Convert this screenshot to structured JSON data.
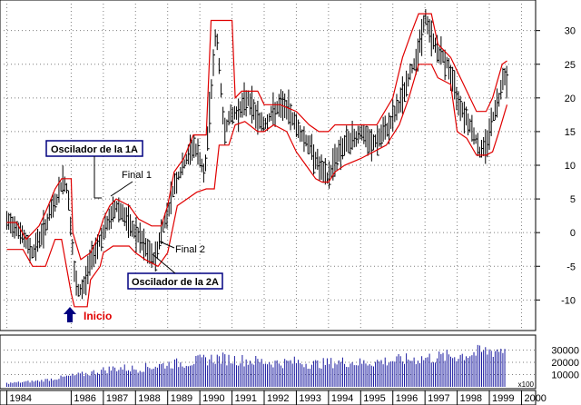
{
  "colors": {
    "price": "#000000",
    "channel": "#e00000",
    "volume": "#1a1aa0",
    "arrow": "#000080",
    "inicio": "#e00000",
    "grid": "#7f7f7f"
  },
  "annotations": {
    "osc1": "Oscilador de la 1A",
    "osc2": "Oscilador de la 2A",
    "final1": "Final 1",
    "final2": "Final 2",
    "inicio": "Inicio",
    "arrow_icon": "up-arrow-icon",
    "vol_unit": "x100"
  },
  "chart_data": [
    {
      "type": "candlestick",
      "title": "",
      "xlabel": "",
      "ylabel": "",
      "x_ticks": [
        "1984",
        "1986",
        "1987",
        "1988",
        "1989",
        "1990",
        "1991",
        "1992",
        "1993",
        "1994",
        "1995",
        "1996",
        "1997",
        "1998",
        "1999",
        "2000"
      ],
      "y_ticks": [
        -10,
        -5,
        0,
        5,
        10,
        15,
        20,
        25,
        30
      ],
      "ylim": [
        -14,
        34
      ],
      "grid": true,
      "price": [
        [
          1984.0,
          1.5
        ],
        [
          1984.3,
          1
        ],
        [
          1984.6,
          -1.5
        ],
        [
          1984.8,
          -3
        ],
        [
          1985.0,
          -1
        ],
        [
          1985.2,
          1
        ],
        [
          1985.4,
          3.5
        ],
        [
          1985.6,
          5.5
        ],
        [
          1985.75,
          8
        ],
        [
          1985.9,
          6
        ],
        [
          1986.0,
          0
        ],
        [
          1986.1,
          -6
        ],
        [
          1986.2,
          -9
        ],
        [
          1986.4,
          -8
        ],
        [
          1986.6,
          -4
        ],
        [
          1986.8,
          -2
        ],
        [
          1987.0,
          0
        ],
        [
          1987.2,
          2
        ],
        [
          1987.4,
          4
        ],
        [
          1987.6,
          3
        ],
        [
          1987.8,
          1
        ],
        [
          1988.0,
          0
        ],
        [
          1988.2,
          -1.5
        ],
        [
          1988.4,
          -3
        ],
        [
          1988.6,
          -4
        ],
        [
          1988.8,
          0
        ],
        [
          1989.0,
          3
        ],
        [
          1989.2,
          7
        ],
        [
          1989.5,
          10
        ],
        [
          1989.8,
          13
        ],
        [
          1990.0,
          11
        ],
        [
          1990.15,
          8
        ],
        [
          1990.3,
          18
        ],
        [
          1990.5,
          30
        ],
        [
          1990.6,
          25
        ],
        [
          1990.75,
          15
        ],
        [
          1990.9,
          17
        ],
        [
          1991.2,
          18
        ],
        [
          1991.5,
          20
        ],
        [
          1991.8,
          17
        ],
        [
          1992.0,
          16
        ],
        [
          1992.3,
          18
        ],
        [
          1992.6,
          19
        ],
        [
          1992.9,
          17
        ],
        [
          1993.1,
          15
        ],
        [
          1993.4,
          13
        ],
        [
          1993.6,
          11
        ],
        [
          1993.8,
          9
        ],
        [
          1994.0,
          8
        ],
        [
          1994.2,
          11
        ],
        [
          1994.5,
          13
        ],
        [
          1994.8,
          14
        ],
        [
          1995.0,
          15
        ],
        [
          1995.3,
          13
        ],
        [
          1995.6,
          14
        ],
        [
          1995.9,
          16
        ],
        [
          1996.2,
          19
        ],
        [
          1996.5,
          23
        ],
        [
          1996.8,
          27
        ],
        [
          1997.0,
          32
        ],
        [
          1997.2,
          29
        ],
        [
          1997.4,
          27
        ],
        [
          1997.7,
          25
        ],
        [
          1998.0,
          20
        ],
        [
          1998.3,
          17
        ],
        [
          1998.5,
          15
        ],
        [
          1998.7,
          12
        ],
        [
          1998.9,
          13
        ],
        [
          1999.1,
          17
        ],
        [
          1999.3,
          20
        ],
        [
          1999.45,
          24
        ],
        [
          1999.55,
          22
        ]
      ],
      "upper_channel": [
        [
          1984.0,
          1.5
        ],
        [
          1984.3,
          1.5
        ],
        [
          1984.6,
          -1
        ],
        [
          1985.0,
          1
        ],
        [
          1985.2,
          3
        ],
        [
          1985.5,
          6.5
        ],
        [
          1985.7,
          8
        ],
        [
          1986.0,
          8
        ],
        [
          1986.05,
          0
        ],
        [
          1986.3,
          -4
        ],
        [
          1986.6,
          -3
        ],
        [
          1986.8,
          -1
        ],
        [
          1987.0,
          2
        ],
        [
          1987.2,
          4
        ],
        [
          1987.4,
          5
        ],
        [
          1987.8,
          4
        ],
        [
          1988.1,
          2
        ],
        [
          1988.5,
          1
        ],
        [
          1988.8,
          1
        ],
        [
          1989.0,
          4
        ],
        [
          1989.2,
          9
        ],
        [
          1989.5,
          11
        ],
        [
          1989.8,
          14.5
        ],
        [
          1990.0,
          14.5
        ],
        [
          1990.2,
          14.5
        ],
        [
          1990.35,
          31.5
        ],
        [
          1991.0,
          31.5
        ],
        [
          1991.1,
          20
        ],
        [
          1991.3,
          21
        ],
        [
          1991.8,
          21
        ],
        [
          1992.0,
          19
        ],
        [
          1992.5,
          19
        ],
        [
          1993.0,
          18
        ],
        [
          1993.4,
          16
        ],
        [
          1993.7,
          15
        ],
        [
          1994.0,
          15
        ],
        [
          1994.2,
          16
        ],
        [
          1995.0,
          16
        ],
        [
          1995.5,
          16
        ],
        [
          1996.0,
          20
        ],
        [
          1996.3,
          26
        ],
        [
          1996.6,
          30
        ],
        [
          1996.8,
          32.5
        ],
        [
          1997.2,
          32.5
        ],
        [
          1997.4,
          28
        ],
        [
          1997.8,
          26
        ],
        [
          1998.0,
          24
        ],
        [
          1998.3,
          21
        ],
        [
          1998.6,
          18
        ],
        [
          1998.9,
          18
        ],
        [
          1999.1,
          20
        ],
        [
          1999.4,
          25
        ],
        [
          1999.55,
          25.5
        ]
      ],
      "lower_channel": [
        [
          1984.0,
          -2.5
        ],
        [
          1984.5,
          -2.5
        ],
        [
          1984.8,
          -5
        ],
        [
          1985.2,
          -5
        ],
        [
          1985.5,
          -1
        ],
        [
          1985.7,
          -1
        ],
        [
          1986.0,
          -9
        ],
        [
          1986.1,
          -11
        ],
        [
          1986.5,
          -11
        ],
        [
          1986.6,
          -7
        ],
        [
          1986.9,
          -5
        ],
        [
          1987.0,
          -3
        ],
        [
          1987.3,
          -2
        ],
        [
          1987.8,
          -2
        ],
        [
          1988.0,
          -3
        ],
        [
          1988.3,
          -4
        ],
        [
          1988.7,
          -5
        ],
        [
          1989.0,
          -3
        ],
        [
          1989.3,
          4
        ],
        [
          1989.6,
          5
        ],
        [
          1989.9,
          6
        ],
        [
          1990.2,
          6.5
        ],
        [
          1990.45,
          6.5
        ],
        [
          1990.6,
          13
        ],
        [
          1990.9,
          13
        ],
        [
          1991.1,
          16
        ],
        [
          1991.4,
          16.5
        ],
        [
          1991.8,
          15
        ],
        [
          1992.0,
          15
        ],
        [
          1992.3,
          16
        ],
        [
          1992.7,
          15
        ],
        [
          1993.0,
          12
        ],
        [
          1993.3,
          10
        ],
        [
          1993.6,
          8
        ],
        [
          1993.8,
          7.5
        ],
        [
          1994.0,
          7.5
        ],
        [
          1994.2,
          9
        ],
        [
          1994.5,
          10
        ],
        [
          1995.0,
          11
        ],
        [
          1995.4,
          12
        ],
        [
          1995.8,
          13
        ],
        [
          1996.2,
          16
        ],
        [
          1996.5,
          20
        ],
        [
          1996.8,
          25
        ],
        [
          1997.2,
          25
        ],
        [
          1997.4,
          23
        ],
        [
          1997.8,
          22
        ],
        [
          1998.0,
          15
        ],
        [
          1998.3,
          14
        ],
        [
          1998.6,
          11.5
        ],
        [
          1998.9,
          11.5
        ],
        [
          1999.1,
          12
        ],
        [
          1999.3,
          15
        ],
        [
          1999.55,
          19
        ]
      ]
    },
    {
      "type": "bar",
      "title": "",
      "xlabel": "",
      "ylabel": "",
      "y_ticks": [
        10000,
        20000,
        30000
      ],
      "ylim": [
        0,
        40000
      ],
      "volume": [
        [
          1984.0,
          3000
        ],
        [
          1985.0,
          5000
        ],
        [
          1986.0,
          9000
        ],
        [
          1986.5,
          11000
        ],
        [
          1987.0,
          14000
        ],
        [
          1987.5,
          16000
        ],
        [
          1988.0,
          15000
        ],
        [
          1988.5,
          17000
        ],
        [
          1989.0,
          19000
        ],
        [
          1989.5,
          20000
        ],
        [
          1990.0,
          22000
        ],
        [
          1990.5,
          24000
        ],
        [
          1991.0,
          23000
        ],
        [
          1991.5,
          22000
        ],
        [
          1992.0,
          21000
        ],
        [
          1992.5,
          20000
        ],
        [
          1993.0,
          21000
        ],
        [
          1993.5,
          19000
        ],
        [
          1994.0,
          20000
        ],
        [
          1994.5,
          21000
        ],
        [
          1995.0,
          20000
        ],
        [
          1995.5,
          21000
        ],
        [
          1996.0,
          22000
        ],
        [
          1996.5,
          23000
        ],
        [
          1997.0,
          24000
        ],
        [
          1997.5,
          25000
        ],
        [
          1998.0,
          26000
        ],
        [
          1998.5,
          28000
        ],
        [
          1999.0,
          30000
        ],
        [
          1999.5,
          32000
        ]
      ]
    }
  ]
}
